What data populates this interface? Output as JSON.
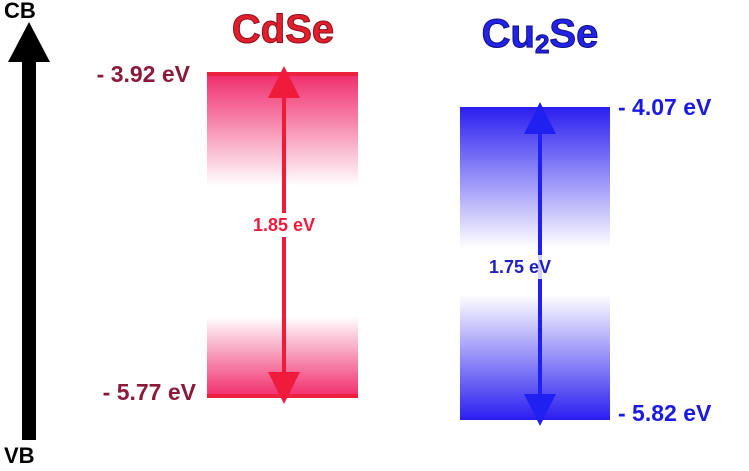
{
  "axis": {
    "top": "CB",
    "bottom": "VB"
  },
  "materials": [
    {
      "name": "CdSe",
      "cb": "- 3.92 eV",
      "vb": "- 5.77 eV",
      "gap": "1.85 eV"
    },
    {
      "name": "Cu",
      "subscript": "2",
      "name_suffix": "Se",
      "cb": "- 4.07 eV",
      "vb": "- 5.82 eV",
      "gap": "1.75 eV"
    }
  ]
}
